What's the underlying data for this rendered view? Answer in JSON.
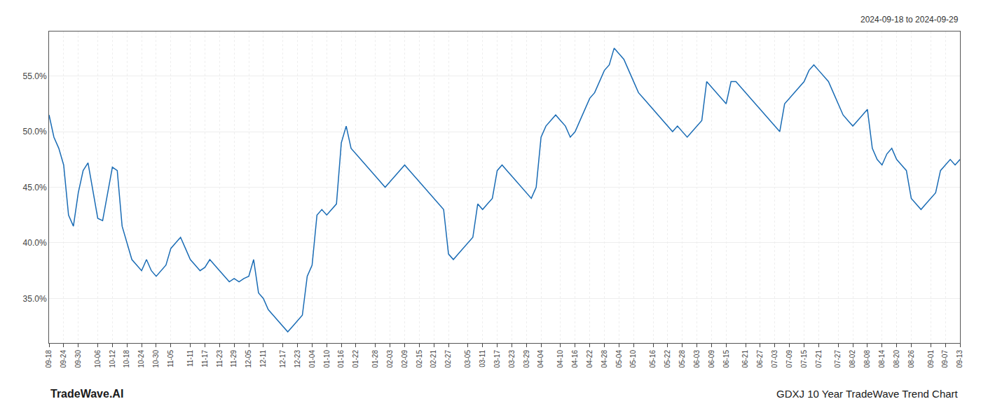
{
  "chart_data": {
    "type": "line",
    "annotations": [
      "2024-09-18 to 2024-09-29",
      "TradeWave.AI",
      "GDXJ 10 Year TradeWave Trend Chart"
    ],
    "color": "#1a6cb5",
    "grid": true,
    "ylim": [
      31.0,
      59.0
    ],
    "yticks": [
      {
        "value": 35.0,
        "label": "35.0%"
      },
      {
        "value": 40.0,
        "label": "40.0%"
      },
      {
        "value": 45.0,
        "label": "45.0%"
      },
      {
        "value": 50.0,
        "label": "50.0%"
      },
      {
        "value": 55.0,
        "label": "55.0%"
      }
    ],
    "categories": [
      "09-18",
      null,
      null,
      "09-24",
      null,
      null,
      "09-30",
      null,
      null,
      null,
      "10-06",
      null,
      null,
      "10-12",
      null,
      null,
      "10-18",
      null,
      null,
      "10-24",
      null,
      null,
      "10-30",
      null,
      null,
      "11-05",
      null,
      null,
      null,
      "11-11",
      null,
      null,
      "11-17",
      null,
      null,
      "11-23",
      null,
      null,
      "11-29",
      null,
      null,
      "12-05",
      null,
      null,
      "12-11",
      null,
      null,
      null,
      "12-17",
      null,
      null,
      "12-23",
      null,
      null,
      "01-04",
      null,
      null,
      "01-10",
      null,
      null,
      "01-16",
      null,
      null,
      "01-22",
      null,
      null,
      null,
      "01-28",
      null,
      null,
      "02-03",
      null,
      null,
      "02-09",
      null,
      null,
      "02-15",
      null,
      null,
      "02-21",
      null,
      null,
      "02-27",
      null,
      null,
      null,
      "03-05",
      null,
      null,
      "03-11",
      null,
      null,
      "03-17",
      null,
      null,
      "03-23",
      null,
      null,
      "03-29",
      null,
      null,
      "04-04",
      null,
      null,
      null,
      "04-10",
      null,
      null,
      "04-16",
      null,
      null,
      "04-22",
      null,
      null,
      "04-28",
      null,
      null,
      "05-04",
      null,
      null,
      "05-10",
      null,
      null,
      null,
      "05-16",
      null,
      null,
      "05-22",
      null,
      null,
      "05-28",
      null,
      null,
      "06-03",
      null,
      null,
      "06-09",
      null,
      null,
      "06-15",
      null,
      null,
      null,
      "06-21",
      null,
      null,
      "06-27",
      null,
      null,
      "07-03",
      null,
      null,
      "07-09",
      null,
      null,
      "07-15",
      null,
      null,
      "07-21",
      null,
      null,
      null,
      "07-27",
      null,
      null,
      "08-02",
      null,
      null,
      "08-08",
      null,
      null,
      "08-14",
      null,
      null,
      "08-20",
      null,
      null,
      "08-26",
      null,
      null,
      null,
      "09-01",
      null,
      null,
      "09-07",
      null,
      null,
      "09-13"
    ],
    "values": [
      51.5,
      49.5,
      48.5,
      47.0,
      42.5,
      41.5,
      44.5,
      46.5,
      47.2,
      44.8,
      42.2,
      42.0,
      44.5,
      46.8,
      46.5,
      41.5,
      40.0,
      38.5,
      38.0,
      37.5,
      38.5,
      37.5,
      37.0,
      37.5,
      38.0,
      39.5,
      40.0,
      40.5,
      39.5,
      38.5,
      38.0,
      37.5,
      37.8,
      38.5,
      38.0,
      37.5,
      37.0,
      36.5,
      36.8,
      36.5,
      36.8,
      37.0,
      38.5,
      35.5,
      35.0,
      34.0,
      33.5,
      33.0,
      32.5,
      32.0,
      32.5,
      33.0,
      33.5,
      37.0,
      38.0,
      42.5,
      43.0,
      42.5,
      43.0,
      43.5,
      49.0,
      50.5,
      48.5,
      48.0,
      47.5,
      47.0,
      46.5,
      46.0,
      45.5,
      45.0,
      45.5,
      46.0,
      46.5,
      47.0,
      46.5,
      46.0,
      45.5,
      45.0,
      44.5,
      44.0,
      43.5,
      43.0,
      39.0,
      38.5,
      39.0,
      39.5,
      40.0,
      40.5,
      43.5,
      43.0,
      43.5,
      44.0,
      46.5,
      47.0,
      46.5,
      46.0,
      45.5,
      45.0,
      44.5,
      44.0,
      45.0,
      49.5,
      50.5,
      51.0,
      51.5,
      51.0,
      50.5,
      49.5,
      50.0,
      51.0,
      52.0,
      53.0,
      53.5,
      54.5,
      55.5,
      56.0,
      57.5,
      57.0,
      56.5,
      55.5,
      54.5,
      53.5,
      53.0,
      52.5,
      52.0,
      51.5,
      51.0,
      50.5,
      50.0,
      50.5,
      50.0,
      49.5,
      50.0,
      50.5,
      51.0,
      54.5,
      54.0,
      53.5,
      53.0,
      52.5,
      54.5,
      54.5,
      54.0,
      53.5,
      53.0,
      52.5,
      52.0,
      51.5,
      51.0,
      50.5,
      50.0,
      52.5,
      53.0,
      53.5,
      54.0,
      54.5,
      55.5,
      56.0,
      55.5,
      55.0,
      54.5,
      53.5,
      52.5,
      51.5,
      51.0,
      50.5,
      51.0,
      51.5,
      52.0,
      48.5,
      47.5,
      47.0,
      48.0,
      48.5,
      47.5,
      47.0,
      46.5,
      44.0,
      43.5,
      43.0,
      43.5,
      44.0,
      44.5,
      46.5,
      47.0,
      47.5,
      47.0,
      47.5
    ]
  }
}
